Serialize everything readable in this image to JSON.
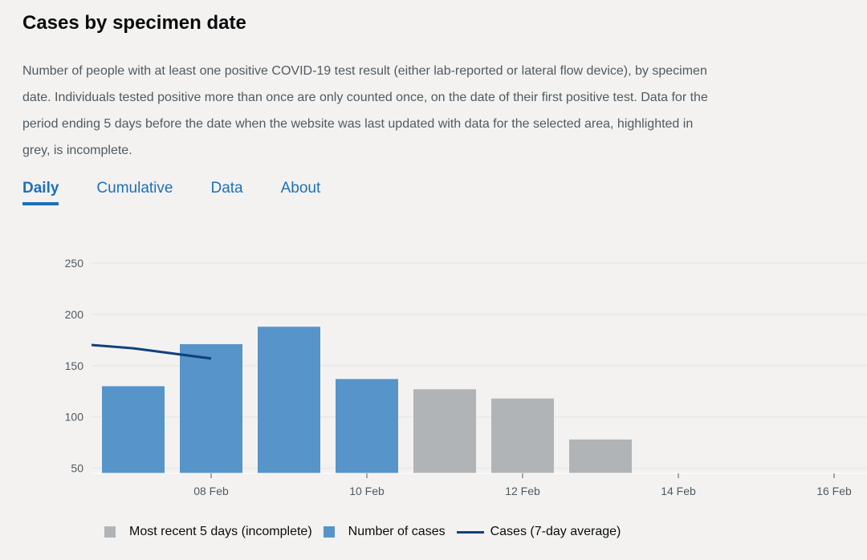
{
  "header": {
    "title": "Cases by specimen date",
    "description": "Number of people with at least one positive COVID-19 test result (either lab-reported or lateral flow device), by specimen date. Individuals tested positive more than once are only counted once, on the date of their first positive test. Data for the period ending 5 days before the date when the website was last updated with data for the selected area, highlighted in grey, is incomplete."
  },
  "tabs": [
    {
      "label": "Daily",
      "active": true
    },
    {
      "label": "Cumulative",
      "active": false
    },
    {
      "label": "Data",
      "active": false
    },
    {
      "label": "About",
      "active": false
    }
  ],
  "colors": {
    "complete": "#5694ca",
    "incomplete": "#b1b4b6",
    "average": "#12407c",
    "link": "#1d70b8"
  },
  "chart_data": {
    "type": "bar",
    "title": "",
    "xlabel": "",
    "ylabel": "",
    "ylim": [
      45,
      250
    ],
    "yticks": [
      50,
      100,
      150,
      200,
      250
    ],
    "grid": true,
    "legend_position": "bottom",
    "categories": [
      "2022-02-07",
      "2022-02-08",
      "2022-02-09",
      "2022-02-10",
      "2022-02-11",
      "2022-02-12",
      "2022-02-13"
    ],
    "x_ticks": [
      {
        "date": "2022-02-08",
        "label": "08 Feb"
      },
      {
        "date": "2022-02-10",
        "label": "10 Feb"
      },
      {
        "date": "2022-02-12",
        "label": "12 Feb"
      },
      {
        "date": "2022-02-14",
        "label": "14 Feb"
      },
      {
        "date": "2022-02-16",
        "label": "16 Feb"
      }
    ],
    "series": [
      {
        "name": "Number of cases",
        "type": "bar",
        "color": "#5694ca",
        "values": [
          130,
          171,
          188,
          137,
          null,
          null,
          null
        ]
      },
      {
        "name": "Most recent 5 days (incomplete)",
        "type": "bar",
        "color": "#b1b4b6",
        "values": [
          null,
          null,
          null,
          null,
          127,
          118,
          78
        ]
      },
      {
        "name": "Cases (7-day average)",
        "type": "line",
        "color": "#12407c",
        "points": [
          {
            "date": "2022-02-06",
            "value": 173
          },
          {
            "date": "2022-02-07",
            "value": 167
          },
          {
            "date": "2022-02-08",
            "value": 157
          }
        ]
      }
    ],
    "legend": [
      {
        "label": "Most recent 5 days (incomplete)",
        "kind": "square",
        "color": "#b1b4b6"
      },
      {
        "label": "Number of cases",
        "kind": "square",
        "color": "#5694ca"
      },
      {
        "label": "Cases (7-day average)",
        "kind": "line",
        "color": "#12407c"
      }
    ]
  }
}
